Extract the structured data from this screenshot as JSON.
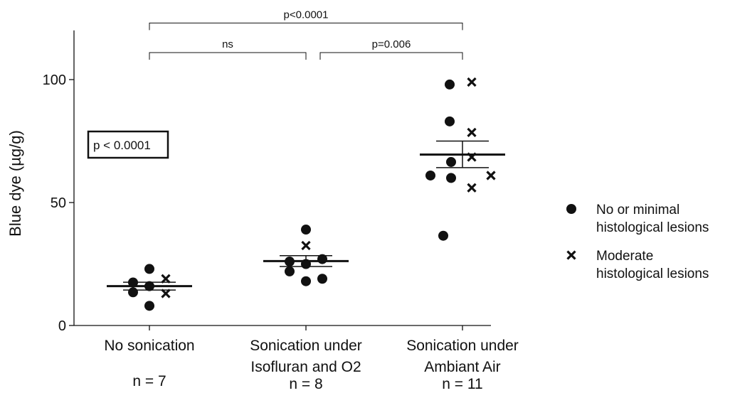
{
  "chart_data": {
    "type": "scatter",
    "title": "",
    "ylabel": "Blue dye (µg/g)",
    "xlabel": "",
    "ylim": [
      0,
      120
    ],
    "yticks": [
      0,
      50,
      100
    ],
    "grid": false,
    "legend_position": "right",
    "categories": [
      {
        "label_lines": [
          "No sonication"
        ],
        "n_label": "n = 7"
      },
      {
        "label_lines": [
          "Sonication under",
          "Isofluran and O2"
        ],
        "n_label": "n = 8"
      },
      {
        "label_lines": [
          "Sonication under",
          "Ambiant Air"
        ],
        "n_label": "n = 11"
      }
    ],
    "series": [
      {
        "name": "No or minimal histological lesions",
        "legend_lines": [
          "No or minimal",
          "histological lesions"
        ],
        "marker": "dot",
        "points": [
          {
            "group": 0,
            "offset": 0.0,
            "y": 23
          },
          {
            "group": 0,
            "offset": -0.23,
            "y": 17.5
          },
          {
            "group": 0,
            "offset": 0.0,
            "y": 16
          },
          {
            "group": 0,
            "offset": -0.23,
            "y": 13.5
          },
          {
            "group": 0,
            "offset": 0.0,
            "y": 8
          },
          {
            "group": 1,
            "offset": 0.0,
            "y": 39
          },
          {
            "group": 1,
            "offset": -0.23,
            "y": 26
          },
          {
            "group": 1,
            "offset": 0.23,
            "y": 27
          },
          {
            "group": 1,
            "offset": 0.0,
            "y": 25
          },
          {
            "group": 1,
            "offset": -0.23,
            "y": 22
          },
          {
            "group": 1,
            "offset": 0.23,
            "y": 19
          },
          {
            "group": 1,
            "offset": 0.0,
            "y": 18
          },
          {
            "group": 2,
            "offset": -0.18,
            "y": 98
          },
          {
            "group": 2,
            "offset": -0.18,
            "y": 83
          },
          {
            "group": 2,
            "offset": -0.16,
            "y": 66.5
          },
          {
            "group": 2,
            "offset": -0.45,
            "y": 61
          },
          {
            "group": 2,
            "offset": -0.16,
            "y": 60
          },
          {
            "group": 2,
            "offset": -0.27,
            "y": 36.5
          }
        ]
      },
      {
        "name": "Moderate histological lesions",
        "legend_lines": [
          "Moderate",
          "histological lesions"
        ],
        "marker": "cross",
        "points": [
          {
            "group": 0,
            "offset": 0.23,
            "y": 19
          },
          {
            "group": 0,
            "offset": 0.23,
            "y": 13
          },
          {
            "group": 1,
            "offset": 0.0,
            "y": 32.5
          },
          {
            "group": 2,
            "offset": 0.13,
            "y": 99
          },
          {
            "group": 2,
            "offset": 0.13,
            "y": 78.5
          },
          {
            "group": 2,
            "offset": 0.13,
            "y": 68.5
          },
          {
            "group": 2,
            "offset": 0.4,
            "y": 61
          },
          {
            "group": 2,
            "offset": 0.13,
            "y": 56
          }
        ]
      }
    ],
    "summary": [
      {
        "group": 0,
        "mean": 16,
        "error_low": 14.4,
        "error_high": 17.6
      },
      {
        "group": 1,
        "mean": 26.2,
        "error_low": 24,
        "error_high": 28.4
      },
      {
        "group": 2,
        "mean": 69.5,
        "error_low": 64.2,
        "error_high": 75
      }
    ],
    "comparisons": [
      {
        "from": 0,
        "to": 2,
        "label": "p<0.0001",
        "y": 123
      },
      {
        "from": 0,
        "to": 1,
        "label": "ns",
        "y": 111
      },
      {
        "from": 1,
        "to": 2,
        "label": "p=0.006",
        "y": 111
      }
    ],
    "annotation_box": {
      "text": "p < 0.0001"
    }
  }
}
